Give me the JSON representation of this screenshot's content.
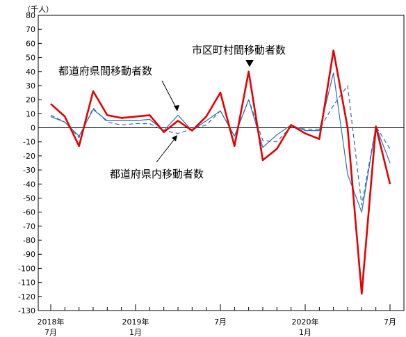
{
  "chart_data": {
    "type": "line",
    "title": "",
    "unit_label": "（千人）",
    "xlabel": "",
    "ylabel": "",
    "ylim": [
      -130,
      80
    ],
    "y_ticks": [
      80,
      70,
      60,
      50,
      40,
      30,
      20,
      10,
      0,
      -10,
      -20,
      -30,
      -40,
      -50,
      -60,
      -70,
      -80,
      -90,
      -100,
      -110,
      -120,
      -130
    ],
    "x": [
      "2018-07",
      "2018-08",
      "2018-09",
      "2018-10",
      "2018-11",
      "2018-12",
      "2019-01",
      "2019-02",
      "2019-03",
      "2019-04",
      "2019-05",
      "2019-06",
      "2019-07",
      "2019-08",
      "2019-09",
      "2019-10",
      "2019-11",
      "2019-12",
      "2020-01",
      "2020-02",
      "2020-03",
      "2020-04",
      "2020-05",
      "2020-06",
      "2020-07"
    ],
    "x_tick_labels": [
      {
        "index": 0,
        "line1": "2018年",
        "line2": "7月"
      },
      {
        "index": 6,
        "line1": "2019年",
        "line2": "1月"
      },
      {
        "index": 12,
        "line1": "7月",
        "line2": ""
      },
      {
        "index": 18,
        "line1": "2020年",
        "line2": "1月"
      },
      {
        "index": 24,
        "line1": "7月",
        "line2": ""
      }
    ],
    "grid": false,
    "zero_line": true,
    "series": [
      {
        "name": "市区町村間移動者数",
        "color": "#e60000",
        "style": "solid-thick",
        "values": [
          17,
          8,
          -13,
          26,
          9,
          7,
          8,
          9,
          -3,
          5,
          -2,
          8,
          25,
          -13,
          40,
          -23,
          -15,
          2,
          -4,
          -8,
          55,
          0,
          -118,
          1,
          -40
        ]
      },
      {
        "name": "都道府県間移動者数",
        "color": "#2b6fb6",
        "style": "solid-thin",
        "values": [
          8,
          4,
          -6,
          13,
          5,
          5,
          5,
          6,
          -2,
          9,
          -2,
          5,
          12,
          -6,
          20,
          -14,
          -5,
          2,
          -2,
          -2,
          39,
          -33,
          -60,
          1,
          -25
        ]
      },
      {
        "name": "都道府県内移動者数",
        "color": "#2b6fb6",
        "style": "dashed",
        "values": [
          9,
          4,
          -7,
          14,
          4,
          2,
          3,
          3,
          -2,
          -4,
          -1,
          2,
          12,
          -6,
          20,
          -9,
          -10,
          1,
          -1,
          -1,
          16,
          30,
          -55,
          1,
          -15
        ]
      }
    ],
    "annotations": {
      "city": "市区町村間移動者数",
      "pref_inter": "都道府県間移動者数",
      "pref_intra": "都道府県内移動者数"
    }
  }
}
